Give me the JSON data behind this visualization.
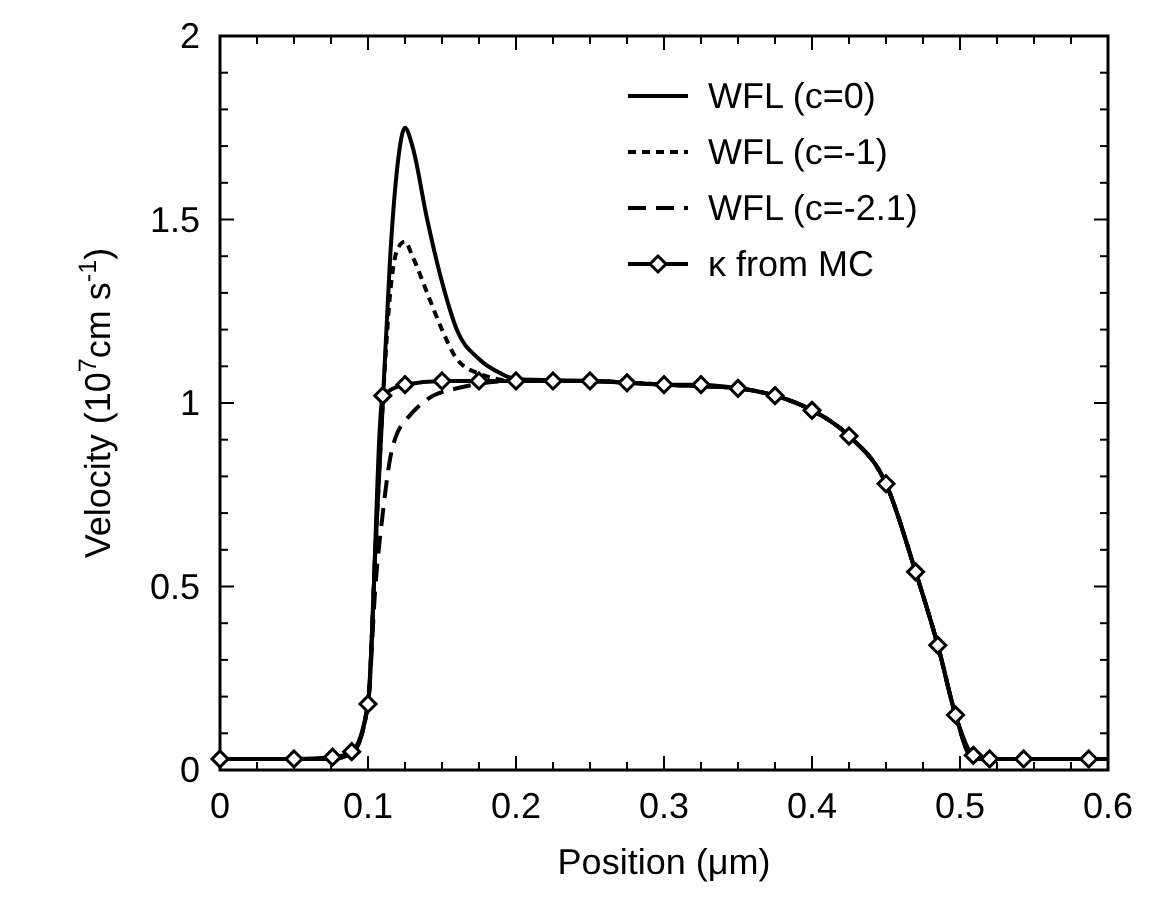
{
  "chart_data": {
    "type": "line",
    "xlabel": "Position (μm)",
    "ylabel": "Velocity (10$^{7}$cm s$^{-1}$)",
    "xlim": [
      0,
      0.6
    ],
    "ylim": [
      0,
      2
    ],
    "xticks": [
      0,
      {
        "value": 0.025,
        "label": null
      },
      {
        "value": 0.05,
        "label": null
      },
      {
        "value": 0.075,
        "label": null
      },
      0.1,
      {
        "value": 0.125,
        "label": null
      },
      {
        "value": 0.15,
        "label": null
      },
      {
        "value": 0.175,
        "label": null
      },
      0.2,
      {
        "value": 0.225,
        "label": null
      },
      {
        "value": 0.25,
        "label": null
      },
      {
        "value": 0.275,
        "label": null
      },
      0.3,
      {
        "value": 0.325,
        "label": null
      },
      {
        "value": 0.35,
        "label": null
      },
      {
        "value": 0.375,
        "label": null
      },
      0.4,
      {
        "value": 0.425,
        "label": null
      },
      {
        "value": 0.45,
        "label": null
      },
      {
        "value": 0.475,
        "label": null
      },
      0.5,
      {
        "value": 0.525,
        "label": null
      },
      {
        "value": 0.55,
        "label": null
      },
      {
        "value": 0.575,
        "label": null
      },
      0.6
    ],
    "yticks": [
      0,
      {
        "value": 0.1,
        "label": null
      },
      {
        "value": 0.2,
        "label": null
      },
      {
        "value": 0.3,
        "label": null
      },
      {
        "value": 0.4,
        "label": null
      },
      0.5,
      {
        "value": 0.6,
        "label": null
      },
      {
        "value": 0.7,
        "label": null
      },
      {
        "value": 0.8,
        "label": null
      },
      {
        "value": 0.9,
        "label": null
      },
      1,
      {
        "value": 1.1,
        "label": null
      },
      {
        "value": 1.2,
        "label": null
      },
      {
        "value": 1.3,
        "label": null
      },
      {
        "value": 1.4,
        "label": null
      },
      1.5,
      {
        "value": 1.6,
        "label": null
      },
      {
        "value": 1.7,
        "label": null
      },
      {
        "value": 1.8,
        "label": null
      },
      {
        "value": 1.9,
        "label": null
      },
      2
    ],
    "grid": false,
    "legend": "top right",
    "series": [
      {
        "name": "WFL (c=0)",
        "color": "#000000",
        "line_style": "solid",
        "marker": "none",
        "x": [
          0,
          0.076,
          0.09,
          0.1,
          0.105,
          0.11,
          0.115,
          0.12,
          0.125,
          0.13,
          0.14,
          0.15,
          0.16,
          0.175,
          0.19,
          0.2,
          0.25,
          0.3,
          0.35,
          0.375,
          0.4,
          0.425,
          0.45,
          0.47,
          0.485,
          0.497,
          0.509,
          0.6
        ],
        "values": [
          0.03,
          0.03,
          0.05,
          0.18,
          0.6,
          1.0,
          1.4,
          1.65,
          1.75,
          1.7,
          1.5,
          1.33,
          1.2,
          1.12,
          1.08,
          1.065,
          1.06,
          1.05,
          1.04,
          1.02,
          0.98,
          0.91,
          0.78,
          0.54,
          0.34,
          0.15,
          0.03,
          0.03
        ]
      },
      {
        "name": "WFL (c=-1)",
        "color": "#000000",
        "line_style": "dashed",
        "marker": "none",
        "x": [
          0,
          0.076,
          0.09,
          0.1,
          0.105,
          0.11,
          0.115,
          0.12,
          0.125,
          0.13,
          0.14,
          0.15,
          0.16,
          0.175,
          0.2,
          0.25,
          0.3,
          0.35,
          0.375,
          0.4,
          0.425,
          0.45,
          0.47,
          0.485,
          0.497,
          0.509,
          0.6
        ],
        "values": [
          0.03,
          0.03,
          0.05,
          0.18,
          0.6,
          1.0,
          1.3,
          1.42,
          1.44,
          1.4,
          1.3,
          1.2,
          1.12,
          1.08,
          1.06,
          1.06,
          1.05,
          1.04,
          1.02,
          0.98,
          0.91,
          0.78,
          0.54,
          0.34,
          0.15,
          0.03,
          0.03
        ]
      },
      {
        "name": "WFL (c=-2.1)",
        "color": "#000000",
        "line_style": "dashed",
        "marker": "none",
        "x": [
          0,
          0.076,
          0.09,
          0.1,
          0.105,
          0.11,
          0.115,
          0.12,
          0.125,
          0.14,
          0.16,
          0.2,
          0.25,
          0.3,
          0.35,
          0.375,
          0.4,
          0.425,
          0.45,
          0.47,
          0.485,
          0.497,
          0.509,
          0.6
        ],
        "values": [
          0.03,
          0.03,
          0.05,
          0.18,
          0.5,
          0.7,
          0.85,
          0.92,
          0.95,
          1.01,
          1.04,
          1.06,
          1.06,
          1.05,
          1.04,
          1.02,
          0.98,
          0.91,
          0.78,
          0.54,
          0.34,
          0.15,
          0.03,
          0.03
        ]
      },
      {
        "name": "κ from MC",
        "color": "#000000",
        "line_style": "solid",
        "marker": "diamond",
        "x": [
          0,
          0.05,
          0.076,
          0.089,
          0.1,
          0.11,
          0.125,
          0.15,
          0.175,
          0.2,
          0.225,
          0.25,
          0.275,
          0.3,
          0.325,
          0.35,
          0.375,
          0.4,
          0.425,
          0.45,
          0.47,
          0.485,
          0.497,
          0.509,
          0.52,
          0.543,
          0.587
        ],
        "values": [
          0.03,
          0.03,
          0.035,
          0.05,
          0.18,
          1.02,
          1.05,
          1.06,
          1.06,
          1.06,
          1.06,
          1.06,
          1.055,
          1.05,
          1.05,
          1.04,
          1.02,
          0.98,
          0.91,
          0.78,
          0.54,
          0.34,
          0.15,
          0.04,
          0.03,
          0.03,
          0.03
        ]
      }
    ]
  }
}
